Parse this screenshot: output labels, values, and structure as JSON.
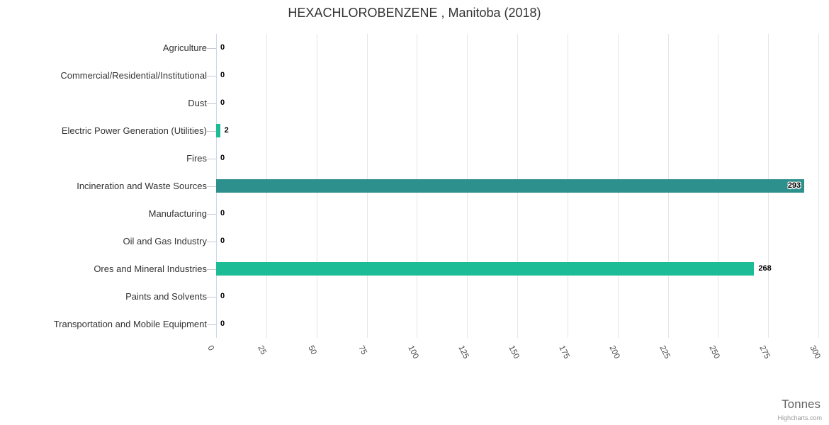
{
  "chart_data": {
    "type": "bar",
    "title": "HEXACHLOROBENZENE , Manitoba (2018)",
    "xlabel": "Tonnes",
    "xlim": [
      0,
      300
    ],
    "x_ticks": [
      "0",
      "25",
      "50",
      "75",
      "100",
      "125",
      "150",
      "175",
      "200",
      "225",
      "250",
      "275",
      "300"
    ],
    "x_tick_values": [
      0,
      25,
      50,
      75,
      100,
      125,
      150,
      175,
      200,
      225,
      250,
      275,
      300
    ],
    "grid": true,
    "legend": "none",
    "categories": [
      "Agriculture",
      "Commercial/Residential/Institutional",
      "Dust",
      "Electric Power Generation (Utilities)",
      "Fires",
      "Incineration and Waste Sources",
      "Manufacturing",
      "Oil and Gas Industry",
      "Ores and Mineral Industries",
      "Paints and Solvents",
      "Transportation and Mobile Equipment"
    ],
    "values": [
      0,
      0,
      0,
      2,
      0,
      293,
      0,
      0,
      268,
      0,
      0
    ],
    "value_labels": [
      "0",
      "0",
      "0",
      "2",
      "0",
      "293",
      "0",
      "0",
      "268",
      "0",
      "0"
    ],
    "label_placement": [
      "axis",
      "axis",
      "axis",
      "outside",
      "axis",
      "inside",
      "axis",
      "axis",
      "outside",
      "axis",
      "axis"
    ],
    "point_colors": [
      "none",
      "none",
      "none",
      "green",
      "none",
      "teal",
      "none",
      "none",
      "green",
      "none",
      "none"
    ],
    "colors": {
      "green": "#1cbc96",
      "teal": "#2e908c",
      "gridline": "#e6e6e6",
      "axis_line": "#ccd6eb",
      "title_text": "#333333",
      "label_text": "#000000"
    },
    "credit": "Highcharts.com"
  }
}
